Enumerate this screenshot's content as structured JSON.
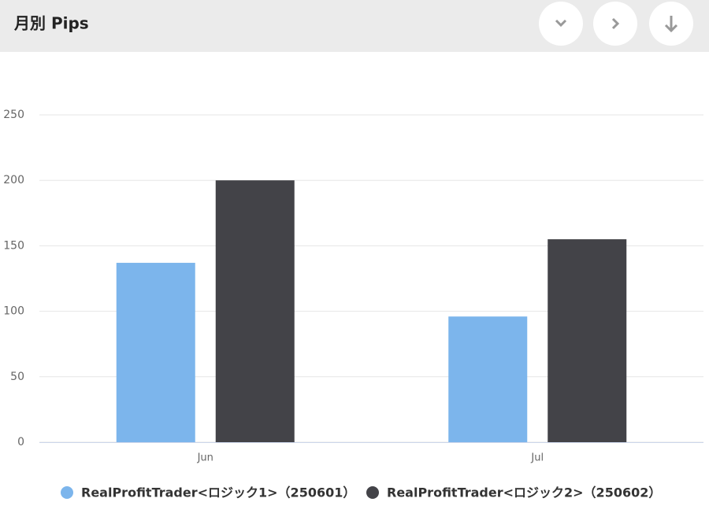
{
  "chart_data": {
    "type": "bar",
    "title": "月別 Pips",
    "categories": [
      "Jun",
      "Jul"
    ],
    "series": [
      {
        "name": "RealProfitTrader<ロジック1>（250601）",
        "color": "#7cb5ec",
        "values": [
          137,
          96
        ]
      },
      {
        "name": "RealProfitTrader<ロジック2>（250602）",
        "color": "#434348",
        "values": [
          200,
          155
        ]
      }
    ],
    "ylim": [
      0,
      250
    ],
    "yticks": [
      0,
      50,
      100,
      150,
      200,
      250
    ],
    "grid": true,
    "legend": "bottom"
  }
}
